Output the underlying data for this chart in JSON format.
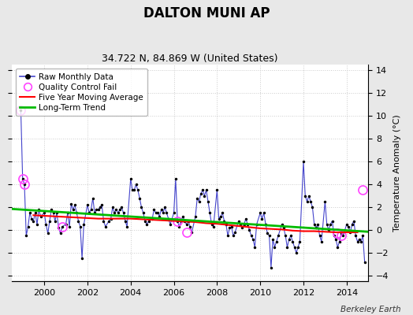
{
  "title": "DALTON MUNI AP",
  "subtitle": "34.722 N, 84.869 W (United States)",
  "ylabel_right": "Temperature Anomaly (°C)",
  "credit": "Berkeley Earth",
  "ylim": [
    -4.5,
    14.5
  ],
  "xlim": [
    1998.5,
    2015.0
  ],
  "yticks": [
    -4,
    -2,
    0,
    2,
    4,
    6,
    8,
    10,
    12,
    14
  ],
  "xticks": [
    2000,
    2002,
    2004,
    2006,
    2008,
    2010,
    2012,
    2014
  ],
  "fig_bg_color": "#e8e8e8",
  "plot_bg_color": "#ffffff",
  "raw_color": "#4444cc",
  "raw_marker_color": "#000000",
  "qc_fail_color": "#ff44ff",
  "moving_avg_color": "#ff0000",
  "trend_color": "#00bb00",
  "raw_data_x": [
    1998.917,
    1999.0,
    1999.083,
    1999.167,
    1999.25,
    1999.333,
    1999.417,
    1999.5,
    1999.583,
    1999.667,
    1999.75,
    1999.833,
    2000.0,
    2000.083,
    2000.167,
    2000.25,
    2000.333,
    2000.417,
    2000.5,
    2000.583,
    2000.667,
    2000.75,
    2000.833,
    2001.0,
    2001.083,
    2001.167,
    2001.25,
    2001.333,
    2001.417,
    2001.5,
    2001.583,
    2001.667,
    2001.75,
    2001.833,
    2002.0,
    2002.083,
    2002.167,
    2002.25,
    2002.333,
    2002.417,
    2002.5,
    2002.583,
    2002.667,
    2002.75,
    2002.833,
    2003.0,
    2003.083,
    2003.167,
    2003.25,
    2003.333,
    2003.417,
    2003.5,
    2003.583,
    2003.667,
    2003.75,
    2003.833,
    2004.0,
    2004.083,
    2004.167,
    2004.25,
    2004.333,
    2004.417,
    2004.5,
    2004.583,
    2004.667,
    2004.75,
    2004.833,
    2005.0,
    2005.083,
    2005.167,
    2005.25,
    2005.333,
    2005.417,
    2005.5,
    2005.583,
    2005.667,
    2005.75,
    2005.833,
    2006.0,
    2006.083,
    2006.167,
    2006.25,
    2006.333,
    2006.417,
    2006.5,
    2006.583,
    2006.667,
    2006.75,
    2006.833,
    2007.0,
    2007.083,
    2007.167,
    2007.25,
    2007.333,
    2007.417,
    2007.5,
    2007.583,
    2007.667,
    2007.75,
    2007.833,
    2008.0,
    2008.083,
    2008.167,
    2008.25,
    2008.333,
    2008.417,
    2008.5,
    2008.583,
    2008.667,
    2008.75,
    2008.833,
    2009.0,
    2009.083,
    2009.167,
    2009.25,
    2009.333,
    2009.417,
    2009.5,
    2009.583,
    2009.667,
    2009.75,
    2009.833,
    2010.0,
    2010.083,
    2010.167,
    2010.25,
    2010.333,
    2010.417,
    2010.5,
    2010.583,
    2010.667,
    2010.75,
    2010.833,
    2011.0,
    2011.083,
    2011.167,
    2011.25,
    2011.333,
    2011.417,
    2011.5,
    2011.583,
    2011.667,
    2011.75,
    2011.833,
    2012.0,
    2012.083,
    2012.167,
    2012.25,
    2012.333,
    2012.417,
    2012.5,
    2012.583,
    2012.667,
    2012.75,
    2012.833,
    2013.0,
    2013.083,
    2013.167,
    2013.25,
    2013.333,
    2013.417,
    2013.5,
    2013.583,
    2013.667,
    2013.75,
    2013.833,
    2014.0,
    2014.083,
    2014.167,
    2014.25,
    2014.333,
    2014.417,
    2014.5,
    2014.583,
    2014.667,
    2014.75,
    2014.833
  ],
  "raw_data_y": [
    10.5,
    4.5,
    4.0,
    -0.5,
    0.3,
    1.5,
    1.0,
    0.8,
    1.5,
    0.5,
    1.8,
    1.2,
    1.5,
    0.5,
    -0.3,
    0.8,
    1.8,
    1.5,
    0.8,
    1.5,
    0.2,
    -0.3,
    0.3,
    0.5,
    1.5,
    0.3,
    2.3,
    1.8,
    2.2,
    1.5,
    0.8,
    0.3,
    -2.5,
    0.5,
    2.2,
    1.5,
    1.8,
    2.8,
    1.5,
    1.8,
    1.8,
    2.0,
    2.2,
    0.8,
    0.3,
    0.8,
    1.0,
    2.0,
    1.5,
    1.8,
    1.5,
    1.8,
    2.0,
    1.5,
    0.8,
    0.3,
    4.5,
    3.5,
    3.5,
    4.0,
    3.5,
    2.8,
    2.0,
    1.5,
    0.8,
    0.5,
    0.8,
    1.0,
    1.8,
    1.5,
    1.5,
    1.2,
    1.8,
    1.5,
    2.0,
    1.5,
    1.0,
    0.5,
    1.5,
    4.5,
    0.8,
    0.3,
    0.8,
    1.2,
    0.8,
    0.5,
    0.8,
    0.3,
    -0.2,
    1.2,
    2.8,
    2.5,
    3.2,
    3.5,
    3.0,
    3.5,
    2.5,
    1.5,
    0.5,
    0.3,
    3.5,
    1.0,
    1.2,
    1.5,
    0.8,
    0.5,
    -0.5,
    0.2,
    0.3,
    -0.5,
    -0.2,
    0.8,
    0.5,
    0.2,
    0.5,
    1.0,
    0.5,
    0.0,
    -0.5,
    -0.8,
    -1.5,
    0.5,
    1.5,
    1.0,
    1.5,
    0.5,
    -0.3,
    -0.5,
    -3.3,
    -0.8,
    -1.5,
    -1.0,
    -0.5,
    0.5,
    0.2,
    -0.5,
    -1.5,
    -0.8,
    -0.5,
    -1.0,
    -1.5,
    -2.0,
    -1.5,
    -1.0,
    6.0,
    3.0,
    2.5,
    3.0,
    2.5,
    2.0,
    0.5,
    0.2,
    0.5,
    -0.5,
    -1.0,
    2.5,
    0.5,
    0.0,
    0.5,
    0.8,
    -0.5,
    -0.8,
    -1.5,
    -1.0,
    -0.3,
    -0.5,
    0.5,
    0.3,
    -0.2,
    0.5,
    0.8,
    -0.5,
    -1.0,
    -0.8,
    -1.0,
    -0.5,
    -2.8
  ],
  "qc_fail_x": [
    1998.917,
    1999.0,
    1999.083,
    2000.833,
    2006.167,
    2006.583,
    2013.583,
    2013.75,
    2014.75
  ],
  "qc_fail_y": [
    10.5,
    4.5,
    4.0,
    0.3,
    0.8,
    -0.2,
    -0.3,
    -0.5,
    3.5
  ],
  "moving_avg_x": [
    1999.5,
    2000.0,
    2000.5,
    2001.0,
    2001.5,
    2002.0,
    2002.5,
    2003.0,
    2003.5,
    2004.0,
    2004.5,
    2005.0,
    2005.5,
    2006.0,
    2006.5,
    2007.0,
    2007.5,
    2008.0,
    2008.5,
    2009.0,
    2009.5,
    2010.0,
    2010.5,
    2011.0,
    2011.5,
    2012.0,
    2012.5,
    2013.0,
    2013.5,
    2014.0,
    2014.5
  ],
  "moving_avg_y": [
    1.3,
    1.25,
    1.2,
    1.15,
    1.1,
    1.05,
    1.0,
    1.0,
    1.0,
    1.0,
    0.95,
    0.9,
    0.85,
    0.8,
    0.75,
    0.7,
    0.6,
    0.55,
    0.45,
    0.35,
    0.25,
    0.15,
    0.1,
    0.05,
    -0.05,
    -0.1,
    -0.1,
    -0.15,
    -0.2,
    -0.2,
    -0.2
  ],
  "trend_x": [
    1998.5,
    2015.0
  ],
  "trend_y": [
    1.85,
    -0.15
  ]
}
